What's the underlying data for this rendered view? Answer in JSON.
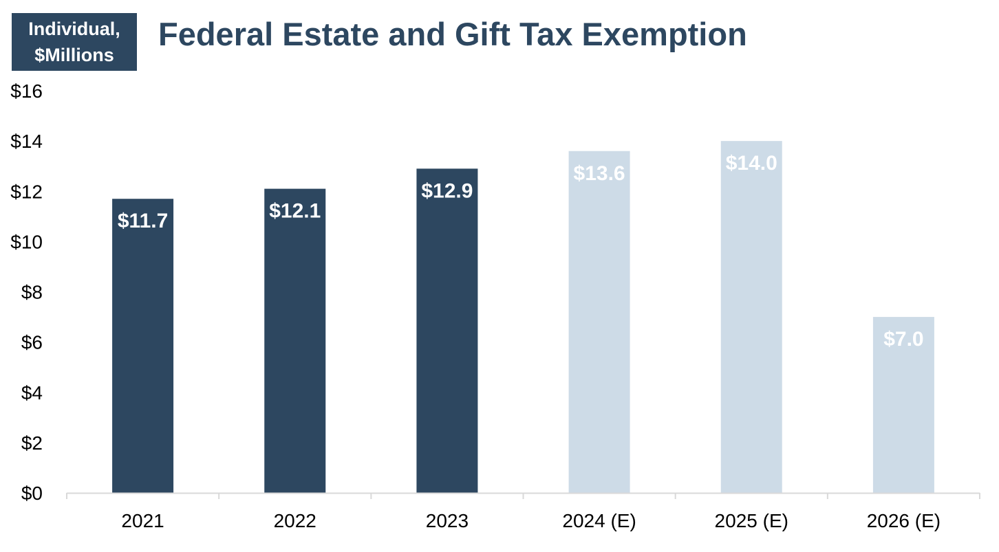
{
  "chart_data": {
    "type": "bar",
    "title": "Federal Estate and Gift Tax Exemption",
    "unit_badge": [
      "Individual,",
      "$Millions"
    ],
    "xlabel": "",
    "ylabel": "Individual, $Millions",
    "categories": [
      "2021",
      "2022",
      "2023",
      "2024 (E)",
      "2025 (E)",
      "2026 (E)"
    ],
    "values": [
      11.7,
      12.1,
      12.9,
      13.6,
      14.0,
      7.0
    ],
    "data_labels": [
      "$11.7",
      "$12.1",
      "$12.9",
      "$13.6",
      "$14.0",
      "$7.0"
    ],
    "estimated": [
      false,
      false,
      false,
      true,
      true,
      true
    ],
    "ylim": [
      0,
      16
    ],
    "yticks": [
      0,
      2,
      4,
      6,
      8,
      10,
      12,
      14,
      16
    ],
    "ytick_labels": [
      "$0",
      "$2",
      "$4",
      "$6",
      "$8",
      "$10",
      "$12",
      "$14",
      "$16"
    ],
    "grid": false,
    "legend": "none",
    "colors": {
      "actual": "#2d4760",
      "estimate": "#cddbe7",
      "label": "#ffffff",
      "axis": "#d9d9d9",
      "title": "#2d4760"
    }
  }
}
